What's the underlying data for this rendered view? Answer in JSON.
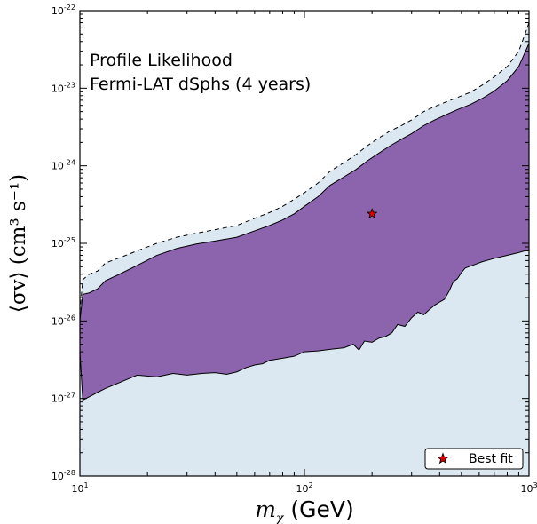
{
  "chart_data": {
    "type": "area",
    "title": "",
    "annotation_lines": [
      "Profile Likelihood",
      "Fermi-LAT dSphs (4 years)"
    ],
    "xlabel_math": "m",
    "xlabel_sub": "χ",
    "xlabel_unit": "(GeV)",
    "ylabel": "⟨σv⟩ (cm³ s⁻¹)",
    "xscale": "log",
    "yscale": "log",
    "xlim": [
      10,
      1000
    ],
    "ylim": [
      1e-28,
      1e-22
    ],
    "x_ticks": [
      {
        "value": 10,
        "base": "10",
        "exp": "1"
      },
      {
        "value": 100,
        "base": "10",
        "exp": "2"
      },
      {
        "value": 1000,
        "base": "10",
        "exp": "3"
      }
    ],
    "y_ticks": [
      {
        "value": 1e-28,
        "base": "10",
        "exp": "-28"
      },
      {
        "value": 1e-27,
        "base": "10",
        "exp": "-27"
      },
      {
        "value": 1e-26,
        "base": "10",
        "exp": "-26"
      },
      {
        "value": 1e-25,
        "base": "10",
        "exp": "-25"
      },
      {
        "value": 1e-24,
        "base": "10",
        "exp": "-24"
      },
      {
        "value": 1e-23,
        "base": "10",
        "exp": "-23"
      },
      {
        "value": 1e-22,
        "base": "10",
        "exp": "-22"
      }
    ],
    "outer_region": {
      "color": "#dce8f1",
      "upper": [
        [
          10,
          1.3e-26
        ],
        [
          10.3,
          3.4e-26
        ],
        [
          11,
          4e-26
        ],
        [
          12,
          4.4e-26
        ],
        [
          13,
          5.6e-26
        ],
        [
          15,
          6.5e-26
        ],
        [
          18,
          8e-26
        ],
        [
          22,
          1e-25
        ],
        [
          27,
          1.2e-25
        ],
        [
          33,
          1.35e-25
        ],
        [
          40,
          1.5e-25
        ],
        [
          50,
          1.7e-25
        ],
        [
          60,
          2.1e-25
        ],
        [
          70,
          2.5e-25
        ],
        [
          80,
          3e-25
        ],
        [
          90,
          3.7e-25
        ],
        [
          100,
          4.5e-25
        ],
        [
          115,
          6e-25
        ],
        [
          130,
          8.5e-25
        ],
        [
          150,
          1.1e-24
        ],
        [
          170,
          1.4e-24
        ],
        [
          190,
          1.8e-24
        ],
        [
          210,
          2.2e-24
        ],
        [
          240,
          2.8e-24
        ],
        [
          270,
          3.3e-24
        ],
        [
          300,
          3.9e-24
        ],
        [
          340,
          5e-24
        ],
        [
          380,
          5.8e-24
        ],
        [
          430,
          6.7e-24
        ],
        [
          480,
          7.6e-24
        ],
        [
          550,
          8.9e-24
        ],
        [
          620,
          1.1e-23
        ],
        [
          700,
          1.4e-23
        ],
        [
          800,
          1.9e-23
        ],
        [
          900,
          3e-23
        ],
        [
          960,
          5e-23
        ],
        [
          1000,
          7e-23
        ]
      ],
      "lower": [
        [
          10,
          1e-28
        ],
        [
          1000,
          1e-28
        ]
      ]
    },
    "inner_region": {
      "color": "#8b64ad",
      "upper": [
        [
          10,
          1e-26
        ],
        [
          10.3,
          2.2e-26
        ],
        [
          11,
          2.3e-26
        ],
        [
          12,
          2.6e-26
        ],
        [
          13,
          3.3e-26
        ],
        [
          15,
          4e-26
        ],
        [
          18,
          5.2e-26
        ],
        [
          22,
          7e-26
        ],
        [
          27,
          8.6e-26
        ],
        [
          33,
          9.8e-26
        ],
        [
          40,
          1.07e-25
        ],
        [
          50,
          1.2e-25
        ],
        [
          60,
          1.45e-25
        ],
        [
          70,
          1.7e-25
        ],
        [
          80,
          2e-25
        ],
        [
          90,
          2.4e-25
        ],
        [
          100,
          3e-25
        ],
        [
          115,
          4e-25
        ],
        [
          130,
          5.6e-25
        ],
        [
          150,
          7.2e-25
        ],
        [
          170,
          9e-25
        ],
        [
          190,
          1.15e-24
        ],
        [
          210,
          1.4e-24
        ],
        [
          240,
          1.8e-24
        ],
        [
          270,
          2.2e-24
        ],
        [
          300,
          2.6e-24
        ],
        [
          340,
          3.3e-24
        ],
        [
          380,
          3.9e-24
        ],
        [
          430,
          4.6e-24
        ],
        [
          480,
          5.3e-24
        ],
        [
          550,
          6.2e-24
        ],
        [
          620,
          7.4e-24
        ],
        [
          700,
          9.2e-24
        ],
        [
          800,
          1.25e-23
        ],
        [
          900,
          1.9e-23
        ],
        [
          960,
          2.9e-23
        ],
        [
          1000,
          3.8e-23
        ]
      ],
      "lower": [
        [
          10,
          4e-27
        ],
        [
          10.3,
          9.5e-28
        ],
        [
          11,
          1.05e-27
        ],
        [
          12,
          1.2e-27
        ],
        [
          13,
          1.35e-27
        ],
        [
          15,
          1.6e-27
        ],
        [
          18,
          2e-27
        ],
        [
          22,
          1.9e-27
        ],
        [
          26,
          2.1e-27
        ],
        [
          30,
          2e-27
        ],
        [
          35,
          2.1e-27
        ],
        [
          40,
          2.15e-27
        ],
        [
          45,
          2.05e-27
        ],
        [
          50,
          2.2e-27
        ],
        [
          55,
          2.5e-27
        ],
        [
          60,
          2.7e-27
        ],
        [
          65,
          2.8e-27
        ],
        [
          70,
          3.1e-27
        ],
        [
          80,
          3.3e-27
        ],
        [
          90,
          3.5e-27
        ],
        [
          100,
          4e-27
        ],
        [
          115,
          4.1e-27
        ],
        [
          130,
          4.3e-27
        ],
        [
          150,
          4.5e-27
        ],
        [
          165,
          5e-27
        ],
        [
          175,
          4.2e-27
        ],
        [
          185,
          5.5e-27
        ],
        [
          200,
          5.3e-27
        ],
        [
          215,
          6e-27
        ],
        [
          230,
          6.3e-27
        ],
        [
          245,
          7e-27
        ],
        [
          260,
          9e-27
        ],
        [
          280,
          8.5e-27
        ],
        [
          300,
          1.1e-26
        ],
        [
          320,
          1.3e-26
        ],
        [
          340,
          1.2e-26
        ],
        [
          360,
          1.4e-26
        ],
        [
          380,
          1.6e-26
        ],
        [
          400,
          1.75e-26
        ],
        [
          420,
          1.9e-26
        ],
        [
          440,
          2.4e-26
        ],
        [
          460,
          3.2e-26
        ],
        [
          480,
          3.5e-26
        ],
        [
          500,
          4.2e-26
        ],
        [
          520,
          4.8e-26
        ],
        [
          560,
          5.2e-26
        ],
        [
          620,
          5.8e-26
        ],
        [
          700,
          6.4e-26
        ],
        [
          800,
          7e-26
        ],
        [
          900,
          7.6e-26
        ],
        [
          1000,
          8.3e-26
        ]
      ]
    },
    "best_fit": {
      "x": 200,
      "y": 2.4e-25,
      "label": "Best fit",
      "color": "#e00000"
    },
    "legend_position": "lower right"
  }
}
